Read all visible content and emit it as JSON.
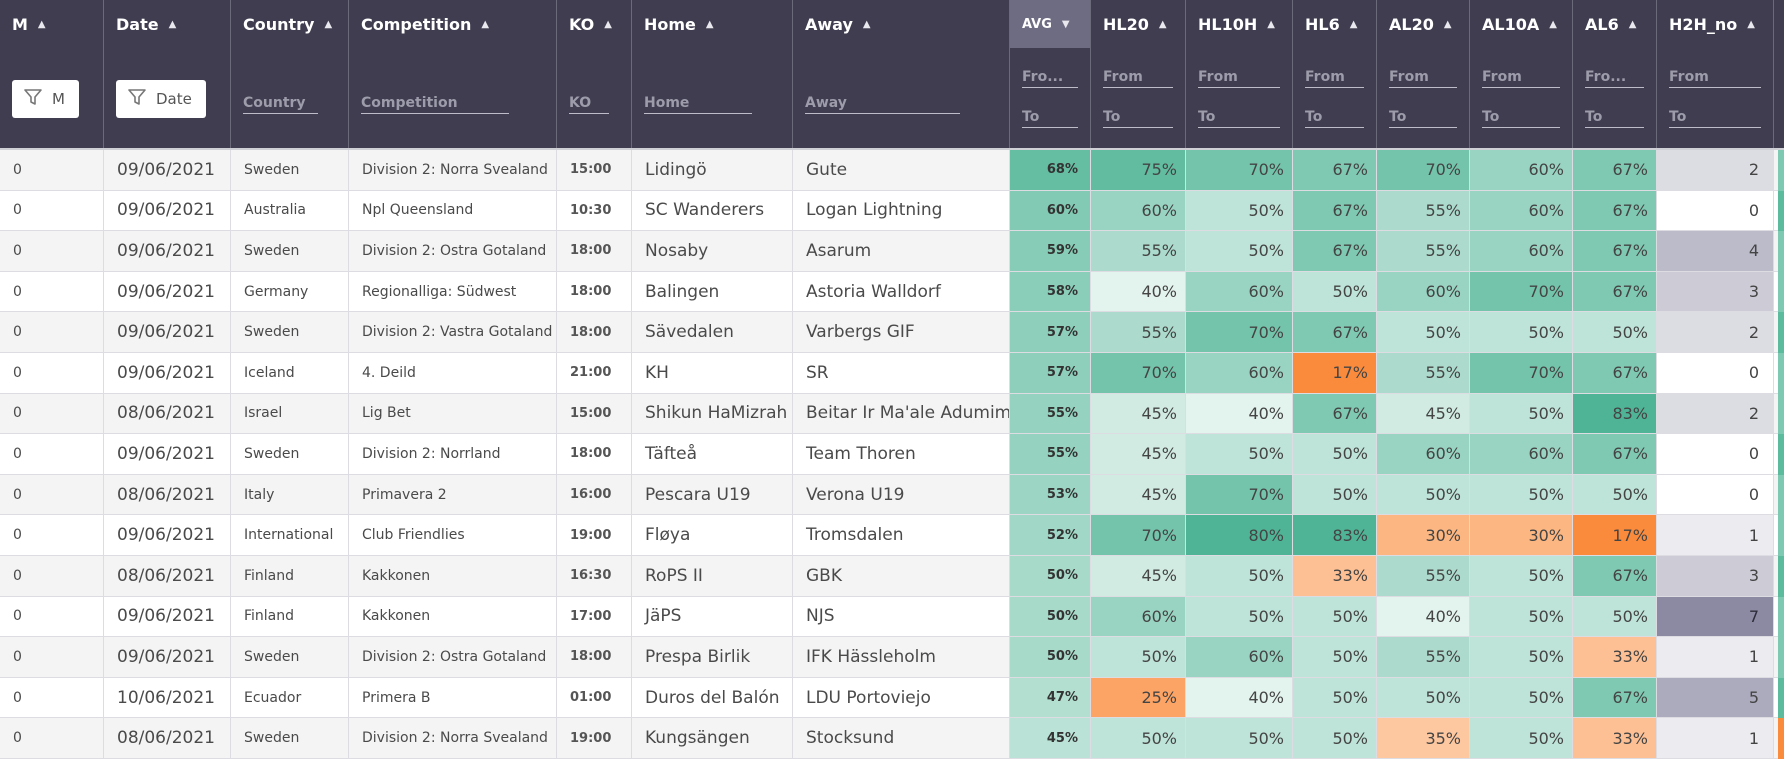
{
  "columns": [
    {
      "key": "m",
      "label": "M",
      "sort": "▲"
    },
    {
      "key": "date",
      "label": "Date",
      "sort": "▲"
    },
    {
      "key": "country",
      "label": "Country",
      "sort": "▲"
    },
    {
      "key": "competition",
      "label": "Competition",
      "sort": "▲"
    },
    {
      "key": "ko",
      "label": "KO",
      "sort": "▲"
    },
    {
      "key": "home",
      "label": "Home",
      "sort": "▲"
    },
    {
      "key": "away",
      "label": "Away",
      "sort": "▲"
    },
    {
      "key": "avg",
      "label": "AVG",
      "sort": "▼"
    },
    {
      "key": "hl20",
      "label": "HL20",
      "sort": "▲"
    },
    {
      "key": "hl10h",
      "label": "HL10H",
      "sort": "▲"
    },
    {
      "key": "hl6",
      "label": "HL6",
      "sort": "▲"
    },
    {
      "key": "al20",
      "label": "AL20",
      "sort": "▲"
    },
    {
      "key": "al10a",
      "label": "AL10A",
      "sort": "▲"
    },
    {
      "key": "al6",
      "label": "AL6",
      "sort": "▲"
    },
    {
      "key": "h2h",
      "label": "H2H_no",
      "sort": "▲"
    }
  ],
  "filters": {
    "m_button": "M",
    "date_button": "Date",
    "country": "Country",
    "competition": "Competition",
    "ko": "KO",
    "home": "Home",
    "away": "Away",
    "avg_from": "Fro...",
    "avg_to": "To",
    "from": "From",
    "to": "To",
    "al6_from": "Fro...",
    "al6_to": "To"
  },
  "colors": {
    "header_bg": "#3f3d4f",
    "avg_header_bg": "#6e6c82",
    "green_low": "#e3f3ee",
    "green_high": "#4fb495",
    "orange_low": "#fdd9bd",
    "orange_high": "#fb8b3c",
    "h2h_scale": "#8c8aa3"
  },
  "rows": [
    {
      "m": "0",
      "date": "09/06/2021",
      "country": "Sweden",
      "competition": "Division 2: Norra Svealand",
      "ko": "15:00",
      "home": "Lidingö",
      "away": "Gute",
      "avg": "68%",
      "hl20": "75%",
      "hl10h": "70%",
      "hl6": "67%",
      "al20": "70%",
      "al10a": "60%",
      "al6": "67%",
      "h2h": "2"
    },
    {
      "m": "0",
      "date": "09/06/2021",
      "country": "Australia",
      "competition": "Npl Queensland",
      "ko": "10:30",
      "home": "SC Wanderers",
      "away": "Logan Lightning",
      "avg": "60%",
      "hl20": "60%",
      "hl10h": "50%",
      "hl6": "67%",
      "al20": "55%",
      "al10a": "60%",
      "al6": "67%",
      "h2h": "0"
    },
    {
      "m": "0",
      "date": "09/06/2021",
      "country": "Sweden",
      "competition": "Division 2: Ostra Gotaland",
      "ko": "18:00",
      "home": "Nosaby",
      "away": "Asarum",
      "avg": "59%",
      "hl20": "55%",
      "hl10h": "50%",
      "hl6": "67%",
      "al20": "55%",
      "al10a": "60%",
      "al6": "67%",
      "h2h": "4"
    },
    {
      "m": "0",
      "date": "09/06/2021",
      "country": "Germany",
      "competition": "Regionalliga: Südwest",
      "ko": "18:00",
      "home": "Balingen",
      "away": "Astoria Walldorf",
      "avg": "58%",
      "hl20": "40%",
      "hl10h": "60%",
      "hl6": "50%",
      "al20": "60%",
      "al10a": "70%",
      "al6": "67%",
      "h2h": "3"
    },
    {
      "m": "0",
      "date": "09/06/2021",
      "country": "Sweden",
      "competition": "Division 2: Vastra Gotaland",
      "ko": "18:00",
      "home": "Sävedalen",
      "away": "Varbergs GIF",
      "avg": "57%",
      "hl20": "55%",
      "hl10h": "70%",
      "hl6": "67%",
      "al20": "50%",
      "al10a": "50%",
      "al6": "50%",
      "h2h": "2"
    },
    {
      "m": "0",
      "date": "09/06/2021",
      "country": "Iceland",
      "competition": "4. Deild",
      "ko": "21:00",
      "home": "KH",
      "away": "SR",
      "avg": "57%",
      "hl20": "70%",
      "hl10h": "60%",
      "hl6": "17%",
      "al20": "55%",
      "al10a": "70%",
      "al6": "67%",
      "h2h": "0"
    },
    {
      "m": "0",
      "date": "08/06/2021",
      "country": "Israel",
      "competition": "Lig Bet",
      "ko": "15:00",
      "home": "Shikun HaMizrah",
      "away": "Beitar Ir Ma'ale Adumim",
      "avg": "55%",
      "hl20": "45%",
      "hl10h": "40%",
      "hl6": "67%",
      "al20": "45%",
      "al10a": "50%",
      "al6": "83%",
      "h2h": "2"
    },
    {
      "m": "0",
      "date": "09/06/2021",
      "country": "Sweden",
      "competition": "Division 2: Norrland",
      "ko": "18:00",
      "home": "Täfteå",
      "away": "Team Thoren",
      "avg": "55%",
      "hl20": "45%",
      "hl10h": "50%",
      "hl6": "50%",
      "al20": "60%",
      "al10a": "60%",
      "al6": "67%",
      "h2h": "0"
    },
    {
      "m": "0",
      "date": "08/06/2021",
      "country": "Italy",
      "competition": "Primavera 2",
      "ko": "16:00",
      "home": "Pescara U19",
      "away": "Verona U19",
      "avg": "53%",
      "hl20": "45%",
      "hl10h": "70%",
      "hl6": "50%",
      "al20": "50%",
      "al10a": "50%",
      "al6": "50%",
      "h2h": "0"
    },
    {
      "m": "0",
      "date": "09/06/2021",
      "country": "International",
      "competition": "Club Friendlies",
      "ko": "19:00",
      "home": "Fløya",
      "away": "Tromsdalen",
      "avg": "52%",
      "hl20": "70%",
      "hl10h": "80%",
      "hl6": "83%",
      "al20": "30%",
      "al10a": "30%",
      "al6": "17%",
      "h2h": "1"
    },
    {
      "m": "0",
      "date": "08/06/2021",
      "country": "Finland",
      "competition": "Kakkonen",
      "ko": "16:30",
      "home": "RoPS II",
      "away": "GBK",
      "avg": "50%",
      "hl20": "45%",
      "hl10h": "50%",
      "hl6": "33%",
      "al20": "55%",
      "al10a": "50%",
      "al6": "67%",
      "h2h": "3"
    },
    {
      "m": "0",
      "date": "09/06/2021",
      "country": "Finland",
      "competition": "Kakkonen",
      "ko": "17:00",
      "home": "JäPS",
      "away": "NJS",
      "avg": "50%",
      "hl20": "60%",
      "hl10h": "50%",
      "hl6": "50%",
      "al20": "40%",
      "al10a": "50%",
      "al6": "50%",
      "h2h": "7"
    },
    {
      "m": "0",
      "date": "09/06/2021",
      "country": "Sweden",
      "competition": "Division 2: Ostra Gotaland",
      "ko": "18:00",
      "home": "Prespa Birlik",
      "away": "IFK Hässleholm",
      "avg": "50%",
      "hl20": "50%",
      "hl10h": "60%",
      "hl6": "50%",
      "al20": "55%",
      "al10a": "50%",
      "al6": "33%",
      "h2h": "1"
    },
    {
      "m": "0",
      "date": "10/06/2021",
      "country": "Ecuador",
      "competition": "Primera B",
      "ko": "01:00",
      "home": "Duros del Balón",
      "away": "LDU Portoviejo",
      "avg": "47%",
      "hl20": "25%",
      "hl10h": "40%",
      "hl6": "50%",
      "al20": "50%",
      "al10a": "50%",
      "al6": "67%",
      "h2h": "5"
    },
    {
      "m": "0",
      "date": "08/06/2021",
      "country": "Sweden",
      "competition": "Division 2: Norra Svealand",
      "ko": "19:00",
      "home": "Kungsängen",
      "away": "Stocksund",
      "avg": "45%",
      "hl20": "50%",
      "hl10h": "50%",
      "hl6": "50%",
      "al20": "35%",
      "al10a": "50%",
      "al6": "33%",
      "h2h": "1"
    }
  ]
}
